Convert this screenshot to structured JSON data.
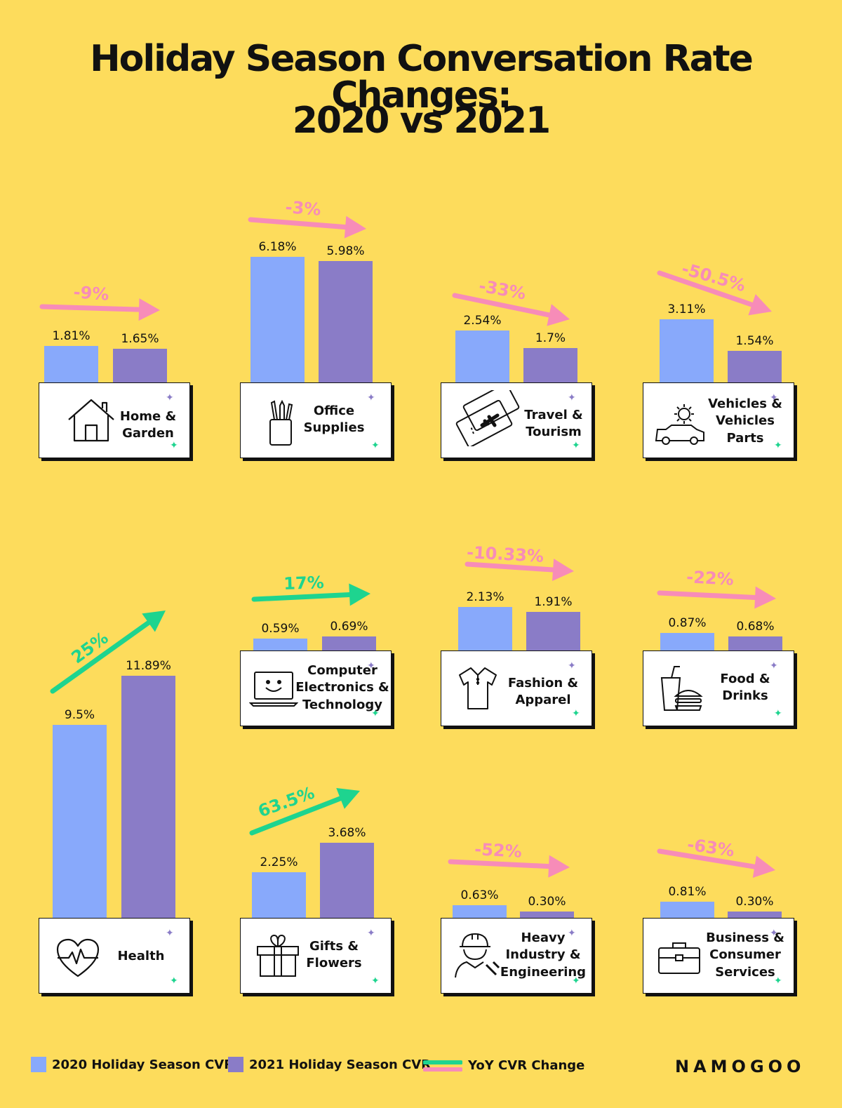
{
  "title": {
    "line1": "Holiday Season Conversation Rate Changes:",
    "line2": "2020 vs 2021"
  },
  "colors": {
    "background": "#fddc5c",
    "bar_2020": "#88a9fb",
    "bar_2021": "#8a7cc7",
    "change_positive": "#1ed48f",
    "change_negative": "#f78cb8"
  },
  "chart_data": [
    {
      "type": "bar",
      "category": "Home & Garden",
      "label_lines": [
        "Home &",
        "Garden"
      ],
      "icon": "house-icon",
      "values": [
        1.81,
        1.65
      ],
      "value_labels": [
        "1.81%",
        "1.65%"
      ],
      "change": "-9%",
      "direction": "down"
    },
    {
      "type": "bar",
      "category": "Office Supplies",
      "label_lines": [
        "Office",
        "Supplies"
      ],
      "icon": "pencil-cup-icon",
      "values": [
        6.18,
        5.98
      ],
      "value_labels": [
        "6.18%",
        "5.98%"
      ],
      "change": "-3%",
      "direction": "down"
    },
    {
      "type": "bar",
      "category": "Travel & Tourism",
      "label_lines": [
        "Travel &",
        "Tourism"
      ],
      "icon": "plane-ticket-icon",
      "values": [
        2.54,
        1.7
      ],
      "value_labels": [
        "2.54%",
        "1.7%"
      ],
      "change": "-33%",
      "direction": "down"
    },
    {
      "type": "bar",
      "category": "Vehicles & Vehicles Parts",
      "label_lines": [
        "Vehicles &",
        "Vehicles",
        "Parts"
      ],
      "icon": "car-gear-icon",
      "values": [
        3.11,
        1.54
      ],
      "value_labels": [
        "3.11%",
        "1.54%"
      ],
      "change": "-50.5%",
      "direction": "down"
    },
    {
      "type": "bar",
      "category": "Health",
      "label_lines": [
        "Health"
      ],
      "icon": "heart-pulse-icon",
      "values": [
        9.5,
        11.89
      ],
      "value_labels": [
        "9.5%",
        "11.89%"
      ],
      "change": "25%",
      "direction": "up"
    },
    {
      "type": "bar",
      "category": "Computer Electronics & Technology",
      "label_lines": [
        "Computer",
        "Electronics &",
        "Technology"
      ],
      "icon": "laptop-icon",
      "values": [
        0.59,
        0.69
      ],
      "value_labels": [
        "0.59%",
        "0.69%"
      ],
      "change": "17%",
      "direction": "up"
    },
    {
      "type": "bar",
      "category": "Fashion & Apparel",
      "label_lines": [
        "Fashion &",
        "Apparel"
      ],
      "icon": "polo-shirt-icon",
      "values": [
        2.13,
        1.91
      ],
      "value_labels": [
        "2.13%",
        "1.91%"
      ],
      "change": "-10.33%",
      "direction": "down"
    },
    {
      "type": "bar",
      "category": "Food & Drinks",
      "label_lines": [
        "Food &",
        "Drinks"
      ],
      "icon": "burger-drink-icon",
      "values": [
        0.87,
        0.68
      ],
      "value_labels": [
        "0.87%",
        "0.68%"
      ],
      "change": "-22%",
      "direction": "down"
    },
    {
      "type": "bar",
      "category": "Gifts & Flowers",
      "label_lines": [
        "Gifts &",
        "Flowers"
      ],
      "icon": "gift-icon",
      "values": [
        2.25,
        3.68
      ],
      "value_labels": [
        "2.25%",
        "3.68%"
      ],
      "change": "63.5%",
      "direction": "up"
    },
    {
      "type": "bar",
      "category": "Heavy Industry & Engineering",
      "label_lines": [
        "Heavy",
        "Industry &",
        "Engineering"
      ],
      "icon": "engineer-icon",
      "values": [
        0.63,
        0.3
      ],
      "value_labels": [
        "0.63%",
        "0.30%"
      ],
      "change": "-52%",
      "direction": "down"
    },
    {
      "type": "bar",
      "category": "Business & Consumer Services",
      "label_lines": [
        "Business &",
        "Consumer",
        "Services"
      ],
      "icon": "briefcase-icon",
      "values": [
        0.81,
        0.3
      ],
      "value_labels": [
        "0.81%",
        "0.30%"
      ],
      "change": "-63%",
      "direction": "down"
    }
  ],
  "legend": {
    "item_2020": "2020 Holiday Season CVR",
    "item_2021": "2021 Holiday Season CVR",
    "item_change": "YoY CVR Change"
  },
  "logo": "NAMOGOO"
}
